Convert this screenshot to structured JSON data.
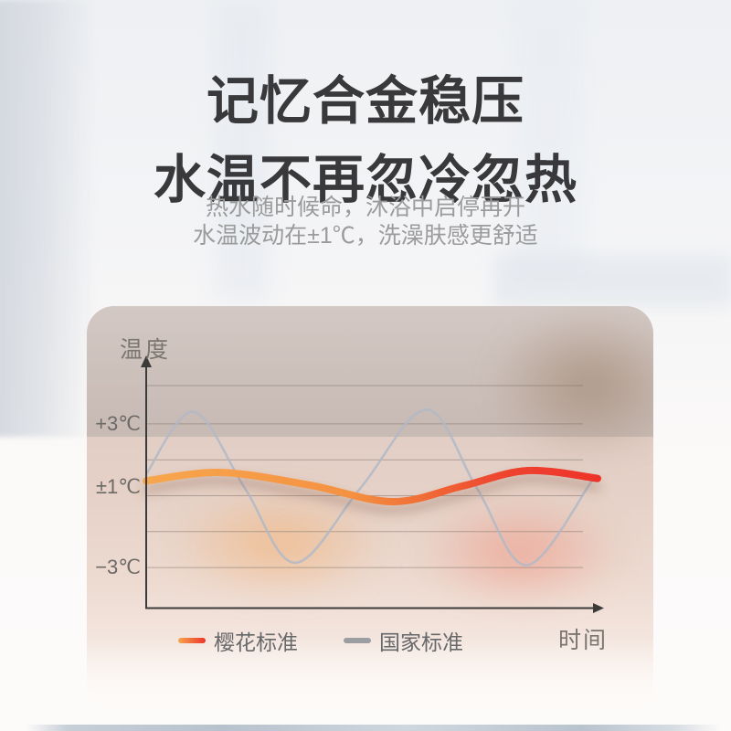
{
  "header": {
    "title_line1": "记忆合金稳压",
    "title_line2": "水温不再忽冷忽热",
    "subtitle_line1": "热水随时候命，沐浴中启停再开",
    "subtitle_line2": "水温波动在±1℃，洗澡肤感更舒适"
  },
  "chart_data": {
    "type": "line",
    "title": "",
    "xlabel": "时间",
    "ylabel": "温度",
    "grid": true,
    "legend_position": "bottom",
    "y_axis": {
      "unit": "℃",
      "range_c": [
        -4.8,
        5.6
      ],
      "gridline_levels_c": [
        4.6,
        3,
        1.5,
        0,
        -1.5,
        -3
      ]
    },
    "y_ticks": [
      {
        "label": "+3℃",
        "level_c": 3
      },
      {
        "label": "±1℃",
        "level_c": 0.35
      },
      {
        "label": "−3℃",
        "level_c": -3
      }
    ],
    "legend": [
      {
        "label": "樱花标准",
        "swatch": "gradient",
        "colors": [
          "#F7A64D",
          "#ED332B"
        ]
      },
      {
        "label": "国家标准",
        "swatch": "solid",
        "colors": [
          "#9B9DA0"
        ]
      }
    ],
    "series": [
      {
        "name": "樱花标准",
        "style": "thick-gradient",
        "stroke_width": 8,
        "gradient_stops": [
          {
            "offset": 0,
            "color": "#F7A64D"
          },
          {
            "offset": 0.45,
            "color": "#F49242"
          },
          {
            "offset": 0.62,
            "color": "#F06B36"
          },
          {
            "offset": 0.78,
            "color": "#EE452F"
          },
          {
            "offset": 1,
            "color": "#ED332B"
          }
        ],
        "points": [
          {
            "x": 0.0,
            "c": 0.62
          },
          {
            "x": 0.165,
            "c": 0.97
          },
          {
            "x": 0.36,
            "c": 0.45
          },
          {
            "x": 0.545,
            "c": -0.25
          },
          {
            "x": 0.7,
            "c": 0.4
          },
          {
            "x": 0.845,
            "c": 1.05
          },
          {
            "x": 1.0,
            "c": 0.72
          }
        ]
      },
      {
        "name": "国家标准",
        "style": "thin-gray",
        "stroke_width": 2.5,
        "color": "rgba(176,185,199,0.85)",
        "points": [
          {
            "x": 0.0,
            "c": 0.9
          },
          {
            "x": 0.105,
            "c": 3.5
          },
          {
            "x": 0.219,
            "c": 0.3
          },
          {
            "x": 0.33,
            "c": -2.8
          },
          {
            "x": 0.476,
            "c": 0.35
          },
          {
            "x": 0.621,
            "c": 3.6
          },
          {
            "x": 0.733,
            "c": 0.3
          },
          {
            "x": 0.844,
            "c": -2.9
          },
          {
            "x": 0.99,
            "c": 0.7
          }
        ]
      }
    ]
  },
  "colors": {
    "axis": "#3b3b3b",
    "gridline": "rgba(122,112,104,0.5)",
    "title_text": "#39393b",
    "subtitle_text": "#9b9b9b",
    "chart_label_text": "#7a756f",
    "tick_text": "#6d6966",
    "legend_text": "#67686a",
    "panel_tint": "#e3d0c6"
  }
}
